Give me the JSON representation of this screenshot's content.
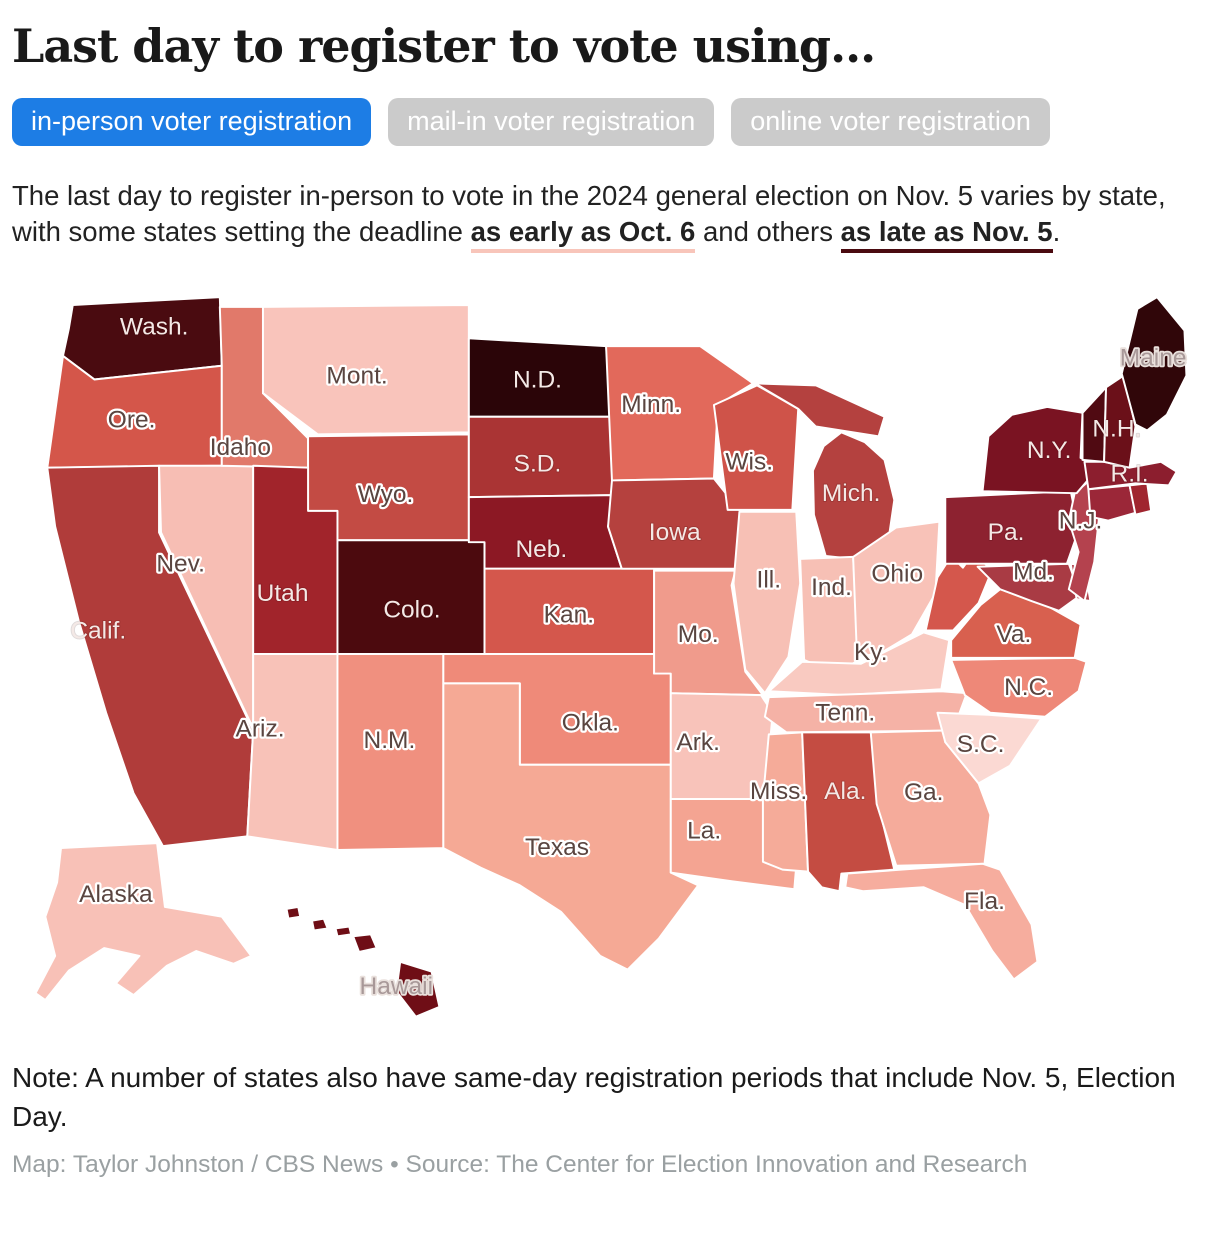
{
  "header": {
    "title": "Last day to register to vote using..."
  },
  "tabs": [
    {
      "label": "in-person voter registration",
      "active": true
    },
    {
      "label": "mail-in voter registration",
      "active": false
    },
    {
      "label": "online voter registration",
      "active": false
    }
  ],
  "intro": {
    "part1": "The last day to register in-person to vote in the 2024 general election on Nov. 5 varies by state, with some states setting the deadline ",
    "early": "as early as Oct. 6",
    "part2": " and others ",
    "late": "as late as Nov. 5",
    "part3": "."
  },
  "note": "Note: A number of states also have same-day registration periods that include Nov. 5, Election Day.",
  "credit": "Map: Taylor Johnston / CBS News • Source: The Center for Election Innovation and Research",
  "legend_colors": {
    "active_tab": "#1d7de5",
    "inactive_tab": "#cbcbcb",
    "early_underline": "#f8c5ba",
    "late_underline": "#4a0a10",
    "scale_min": "#fbd9d3",
    "scale_max": "#2b0508"
  },
  "chart_data": {
    "type": "choropleth",
    "title": "Last day to register to vote using in-person voter registration",
    "encoding": "State color encodes the in-person voter registration deadline for the Nov. 5, 2024 election, from as early as Oct. 6 (light pink) to as late as Nov. 5 (dark maroon).",
    "states": [
      {
        "id": "WA",
        "label": "Wash.",
        "fill": "#4a0b10",
        "label_style": "light"
      },
      {
        "id": "OR",
        "label": "Ore.",
        "fill": "#d4564a",
        "label_style": "dark"
      },
      {
        "id": "CA",
        "label": "Calif.",
        "fill": "#b03c3a",
        "label_style": "light"
      },
      {
        "id": "NV",
        "label": "Nev.",
        "fill": "#f7beb4",
        "label_style": "dark"
      },
      {
        "id": "ID",
        "label": "Idaho",
        "fill": "#e1796a",
        "label_style": "dark"
      },
      {
        "id": "MT",
        "label": "Mont.",
        "fill": "#f9c4bb",
        "label_style": "dark"
      },
      {
        "id": "WY",
        "label": "Wyo.",
        "fill": "#c34b44",
        "label_style": "dark"
      },
      {
        "id": "UT",
        "label": "Utah",
        "fill": "#a1242b",
        "label_style": "light"
      },
      {
        "id": "CO",
        "label": "Colo.",
        "fill": "#4c0a0e",
        "label_style": "light"
      },
      {
        "id": "AZ",
        "label": "Ariz.",
        "fill": "#f8c2b8",
        "label_style": "dark"
      },
      {
        "id": "NM",
        "label": "N.M.",
        "fill": "#f0907f",
        "label_style": "dark"
      },
      {
        "id": "ND",
        "label": "N.D.",
        "fill": "#2b0508",
        "label_style": "light"
      },
      {
        "id": "SD",
        "label": "S.D.",
        "fill": "#aa3434",
        "label_style": "light"
      },
      {
        "id": "NE",
        "label": "Neb.",
        "fill": "#8c1824",
        "label_style": "light"
      },
      {
        "id": "KS",
        "label": "Kan.",
        "fill": "#d4574c",
        "label_style": "dark"
      },
      {
        "id": "OK",
        "label": "Okla.",
        "fill": "#ef8a79",
        "label_style": "dark"
      },
      {
        "id": "TX",
        "label": "Texas",
        "fill": "#f5a995",
        "label_style": "dark"
      },
      {
        "id": "MN",
        "label": "Minn.",
        "fill": "#e2695b",
        "label_style": "dark"
      },
      {
        "id": "IA",
        "label": "Iowa",
        "fill": "#b5413e",
        "label_style": "light"
      },
      {
        "id": "MO",
        "label": "Mo.",
        "fill": "#f09b8c",
        "label_style": "dark"
      },
      {
        "id": "AR",
        "label": "Ark.",
        "fill": "#f8c3ba",
        "label_style": "dark"
      },
      {
        "id": "LA",
        "label": "La.",
        "fill": "#f4a492",
        "label_style": "dark"
      },
      {
        "id": "WI",
        "label": "Wis.",
        "fill": "#cf5349",
        "label_style": "dark"
      },
      {
        "id": "IL",
        "label": "Ill.",
        "fill": "#f7c0b5",
        "label_style": "dark"
      },
      {
        "id": "MI",
        "label": "Mich.",
        "fill": "#b4413f",
        "label_style": "light"
      },
      {
        "id": "IN",
        "label": "Ind.",
        "fill": "#f7c0b5",
        "label_style": "dark"
      },
      {
        "id": "OH",
        "label": "Ohio",
        "fill": "#f8c2b8",
        "label_style": "dark"
      },
      {
        "id": "KY",
        "label": "Ky.",
        "fill": "#f9cac1",
        "label_style": "dark"
      },
      {
        "id": "TN",
        "label": "Tenn.",
        "fill": "#f5b2a6",
        "label_style": "dark"
      },
      {
        "id": "MS",
        "label": "Miss.",
        "fill": "#f5ab99",
        "label_style": "dark"
      },
      {
        "id": "AL",
        "label": "Ala.",
        "fill": "#c44c42",
        "label_style": "light"
      },
      {
        "id": "GA",
        "label": "Ga.",
        "fill": "#f5ab9b",
        "label_style": "dark"
      },
      {
        "id": "FL",
        "label": "Fla.",
        "fill": "#f6ad9e",
        "label_style": "dark"
      },
      {
        "id": "SC",
        "label": "S.C.",
        "fill": "#fbd9d3",
        "label_style": "dark"
      },
      {
        "id": "NC",
        "label": "N.C.",
        "fill": "#ee8878",
        "label_style": "dark"
      },
      {
        "id": "VA",
        "label": "Va.",
        "fill": "#d8604f",
        "label_style": "dark"
      },
      {
        "id": "WV",
        "label": "",
        "fill": "#d4574c",
        "label_style": "dark"
      },
      {
        "id": "MD",
        "label": "Md.",
        "fill": "#a93b44",
        "label_style": "dark"
      },
      {
        "id": "DE",
        "label": "",
        "fill": "#b0404a",
        "label_style": "dark"
      },
      {
        "id": "PA",
        "label": "Pa.",
        "fill": "#8d2230",
        "label_style": "light"
      },
      {
        "id": "NJ",
        "label": "N.J.",
        "fill": "#b4424e",
        "label_style": "dark"
      },
      {
        "id": "NY",
        "label": "N.Y.",
        "fill": "#7a1322",
        "label_style": "light"
      },
      {
        "id": "CT",
        "label": "",
        "fill": "#9b2738",
        "label_style": "light"
      },
      {
        "id": "RI",
        "label": "R.I.",
        "fill": "#a0252f",
        "label_style": "light"
      },
      {
        "id": "MA",
        "label": "",
        "fill": "#8c1e2e",
        "label_style": "light"
      },
      {
        "id": "VT",
        "label": "",
        "fill": "#500a12",
        "label_style": "light"
      },
      {
        "id": "NH",
        "label": "N.H.",
        "fill": "#6b1019",
        "label_style": "light"
      },
      {
        "id": "ME",
        "label": "Maine",
        "fill": "#300609",
        "label_style": "muted"
      },
      {
        "id": "AK",
        "label": "Alaska",
        "fill": "#f8c1b7",
        "label_style": "dark"
      },
      {
        "id": "HI",
        "label": "Hawaii",
        "fill": "#6f0e16",
        "label_style": "muted"
      }
    ]
  }
}
